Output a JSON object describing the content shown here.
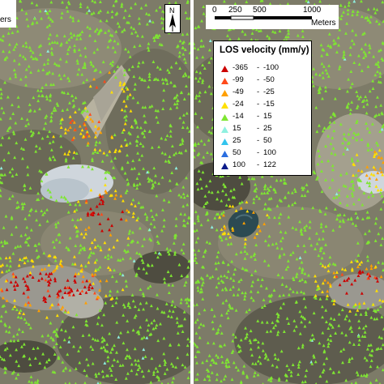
{
  "scale_bar_left": {
    "unit_fragment": "ers"
  },
  "scale_bar_right": {
    "ticks": [
      "0",
      "250",
      "500",
      "1000"
    ],
    "unit": "Meters"
  },
  "north_arrow": {
    "label": "N",
    "icon": "north-arrow-icon"
  },
  "legend": {
    "title": "LOS velocity (mm/y)",
    "classes": [
      {
        "low": "-365",
        "high": "-100",
        "color": "#cc0000"
      },
      {
        "low": "-99",
        "high": "-50",
        "color": "#ff4a1a"
      },
      {
        "low": "-49",
        "high": "-25",
        "color": "#ffa000"
      },
      {
        "low": "-24",
        "high": "-15",
        "color": "#ffe000"
      },
      {
        "low": "-14",
        "high": "15",
        "color": "#7fe632"
      },
      {
        "low": "15",
        "high": "25",
        "color": "#8ff0e0"
      },
      {
        "low": "25",
        "high": "50",
        "color": "#33c4ee"
      },
      {
        "low": "50",
        "high": "100",
        "color": "#2a6ee0"
      },
      {
        "low": "100",
        "high": "122",
        "color": "#0a1a8a"
      }
    ]
  },
  "colors": {
    "terrain_base": "#7d7b68",
    "terrain_dark": "#4e4c40",
    "terrain_light": "#b7b2a0",
    "ice": "#cfd6dc",
    "lake": "#2c4a52",
    "stable_points": "#7fe632",
    "rock_glacier_fast": "#cc0000"
  }
}
